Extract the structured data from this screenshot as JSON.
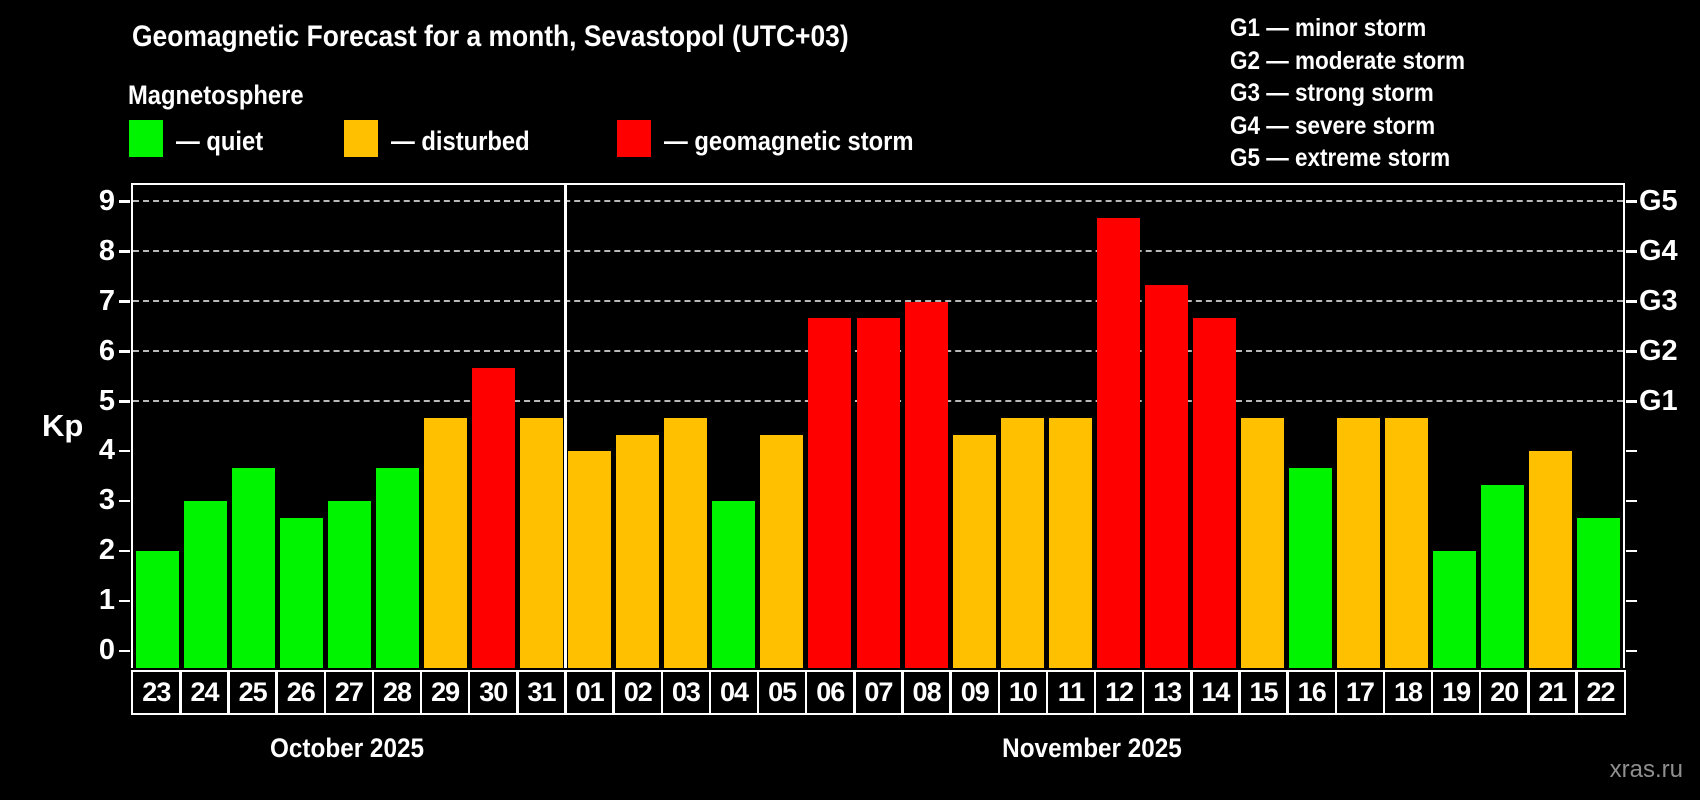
{
  "header": {
    "title": "Geomagnetic Forecast for a month, Sevastopol (UTC+03)",
    "subtitle": "Magnetosphere"
  },
  "legend": {
    "items": [
      {
        "key": "quiet",
        "label": "— quiet"
      },
      {
        "key": "disturbed",
        "label": "— disturbed"
      },
      {
        "key": "storm",
        "label": "— geomagnetic storm"
      }
    ]
  },
  "g_scale_legend": {
    "items": [
      {
        "label": "G1 — minor storm"
      },
      {
        "label": "G2 — moderate storm"
      },
      {
        "label": "G3 — strong storm"
      },
      {
        "label": "G4 — severe storm"
      },
      {
        "label": "G5 — extreme storm"
      }
    ]
  },
  "watermark": "xras.ru",
  "chart_data": {
    "type": "bar",
    "ylabel": "Kp",
    "ylim": [
      -0.34,
      9.34
    ],
    "y_ticks": [
      0,
      1,
      2,
      3,
      4,
      5,
      6,
      7,
      8,
      9
    ],
    "gridlines_at": [
      5,
      6,
      7,
      8,
      9
    ],
    "right_labels": [
      {
        "kp": 5,
        "label": "G1"
      },
      {
        "kp": 6,
        "label": "G2"
      },
      {
        "kp": 7,
        "label": "G3"
      },
      {
        "kp": 8,
        "label": "G4"
      },
      {
        "kp": 9,
        "label": "G5"
      }
    ],
    "colors": {
      "quiet": "#00f400",
      "disturbed": "#ffc000",
      "storm": "#ff0000"
    },
    "months": [
      {
        "label": "October 2025",
        "days": [
          {
            "date": "23",
            "kp": 2.0,
            "status": "quiet"
          },
          {
            "date": "24",
            "kp": 3.0,
            "status": "quiet"
          },
          {
            "date": "25",
            "kp": 3.67,
            "status": "quiet"
          },
          {
            "date": "26",
            "kp": 2.67,
            "status": "quiet"
          },
          {
            "date": "27",
            "kp": 3.0,
            "status": "quiet"
          },
          {
            "date": "28",
            "kp": 3.67,
            "status": "quiet"
          },
          {
            "date": "29",
            "kp": 4.67,
            "status": "disturbed"
          },
          {
            "date": "30",
            "kp": 5.67,
            "status": "storm"
          },
          {
            "date": "31",
            "kp": 4.67,
            "status": "disturbed"
          }
        ]
      },
      {
        "label": "November 2025",
        "days": [
          {
            "date": "01",
            "kp": 4.0,
            "status": "disturbed"
          },
          {
            "date": "02",
            "kp": 4.33,
            "status": "disturbed"
          },
          {
            "date": "03",
            "kp": 4.67,
            "status": "disturbed"
          },
          {
            "date": "04",
            "kp": 3.0,
            "status": "quiet"
          },
          {
            "date": "05",
            "kp": 4.33,
            "status": "disturbed"
          },
          {
            "date": "06",
            "kp": 6.67,
            "status": "storm"
          },
          {
            "date": "07",
            "kp": 6.67,
            "status": "storm"
          },
          {
            "date": "08",
            "kp": 7.0,
            "status": "storm"
          },
          {
            "date": "09",
            "kp": 4.33,
            "status": "disturbed"
          },
          {
            "date": "10",
            "kp": 4.67,
            "status": "disturbed"
          },
          {
            "date": "11",
            "kp": 4.67,
            "status": "disturbed"
          },
          {
            "date": "12",
            "kp": 8.67,
            "status": "storm"
          },
          {
            "date": "13",
            "kp": 7.33,
            "status": "storm"
          },
          {
            "date": "14",
            "kp": 6.67,
            "status": "storm"
          },
          {
            "date": "15",
            "kp": 4.67,
            "status": "disturbed"
          },
          {
            "date": "16",
            "kp": 3.67,
            "status": "quiet"
          },
          {
            "date": "17",
            "kp": 4.67,
            "status": "disturbed"
          },
          {
            "date": "18",
            "kp": 4.67,
            "status": "disturbed"
          },
          {
            "date": "19",
            "kp": 2.0,
            "status": "quiet"
          },
          {
            "date": "20",
            "kp": 3.33,
            "status": "quiet"
          },
          {
            "date": "21",
            "kp": 4.0,
            "status": "disturbed"
          },
          {
            "date": "22",
            "kp": 2.67,
            "status": "quiet"
          }
        ]
      }
    ]
  }
}
